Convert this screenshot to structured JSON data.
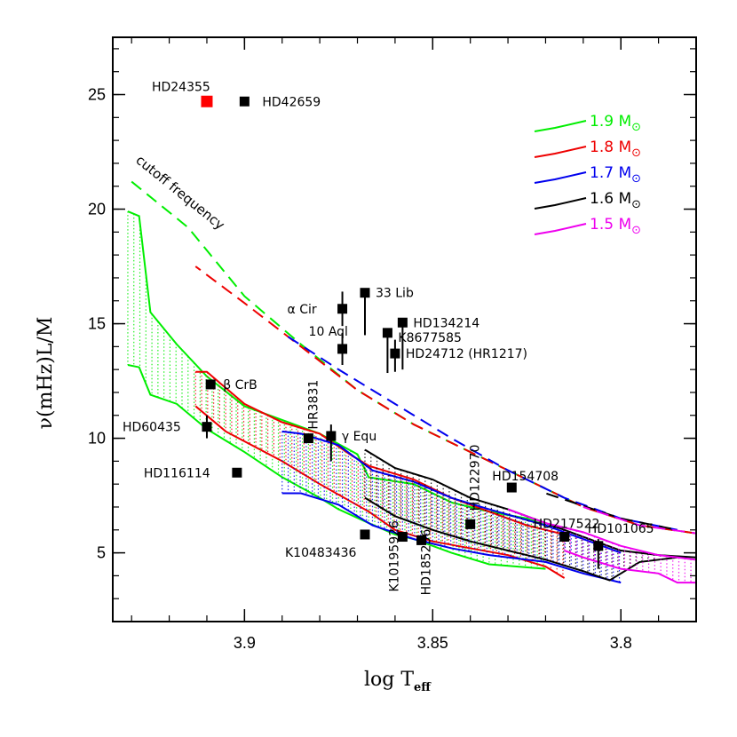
{
  "chart_data": {
    "type": "scatter",
    "xlabel_main": "log T",
    "xlabel_sub": "eff",
    "ylabel": "ν(mHz)L/M",
    "xlim": [
      3.935,
      3.78
    ],
    "ylim": [
      2,
      27.5
    ],
    "x_ticks": [
      {
        "value": 3.9,
        "label": "3.9"
      },
      {
        "value": 3.85,
        "label": "3.85"
      },
      {
        "value": 3.8,
        "label": "3.8"
      }
    ],
    "y_ticks": [
      {
        "value": 5,
        "label": "5"
      },
      {
        "value": 10,
        "label": "10"
      },
      {
        "value": 15,
        "label": "15"
      },
      {
        "value": 20,
        "label": "20"
      },
      {
        "value": 25,
        "label": "25"
      }
    ],
    "annotation": "cutoff frequency",
    "legend": [
      {
        "label": "1.9 M",
        "sub": "⊙",
        "color": "#00ee00"
      },
      {
        "label": "1.8 M",
        "sub": "⊙",
        "color": "#ee0000"
      },
      {
        "label": "1.7 M",
        "sub": "⊙",
        "color": "#0000ee"
      },
      {
        "label": "1.6 M",
        "sub": "⊙",
        "color": "#000000"
      },
      {
        "label": "1.5 M",
        "sub": "⊙",
        "color": "#ee00ee"
      }
    ],
    "stars": [
      {
        "name": "HD24355",
        "x": 3.91,
        "y": 24.7,
        "color": "#ff0000",
        "big": true,
        "label_dx": -62,
        "label_dy": -12,
        "rot": 0
      },
      {
        "name": "HD42659",
        "x": 3.9,
        "y": 24.7,
        "color": "#000000",
        "label_dx": 20,
        "label_dy": 5,
        "rot": 0
      },
      {
        "name": "33 Lib",
        "x": 3.868,
        "y": 16.35,
        "color": "#000000",
        "err": [
          14.5,
          16.35
        ],
        "label_dx": 12,
        "label_dy": 5,
        "rot": 0
      },
      {
        "name": "α Cir",
        "x": 3.874,
        "y": 15.65,
        "color": "#000000",
        "err": [
          14.9,
          16.4
        ],
        "label_dx": -62,
        "label_dy": 5,
        "rot": 0
      },
      {
        "name": "HD134214",
        "x": 3.858,
        "y": 15.05,
        "color": "#000000",
        "err": [
          13.0,
          15.05
        ],
        "label_dx": 12,
        "label_dy": 5,
        "rot": 0
      },
      {
        "name": "K8677585",
        "x": 3.862,
        "y": 14.6,
        "color": "#000000",
        "err": [
          12.85,
          14.6
        ],
        "label_dx": 12,
        "label_dy": 10,
        "rot": 0
      },
      {
        "name": "10 Aql",
        "x": 3.874,
        "y": 13.9,
        "color": "#000000",
        "err": [
          13.2,
          14.6
        ],
        "label_dx": -38,
        "label_dy": -15,
        "rot": 0
      },
      {
        "name": "HD24712 (HR1217)",
        "x": 3.86,
        "y": 13.7,
        "color": "#000000",
        "err": [
          12.9,
          14.3
        ],
        "label_dx": 12,
        "label_dy": 5,
        "rot": 0
      },
      {
        "name": "β CrB",
        "x": 3.909,
        "y": 12.35,
        "color": "#000000",
        "label_dx": 14,
        "label_dy": 5,
        "rot": 0
      },
      {
        "name": "HD60435",
        "x": 3.91,
        "y": 10.5,
        "color": "#000000",
        "err": [
          10.0,
          11.0
        ],
        "label_dx": -95,
        "label_dy": 5,
        "rot": 0
      },
      {
        "name": "HR3831",
        "x": 3.883,
        "y": 10.0,
        "color": "#000000",
        "label_dx": 10,
        "label_dy": -10,
        "rot": -90
      },
      {
        "name": "γ Equ",
        "x": 3.877,
        "y": 10.1,
        "color": "#000000",
        "err": [
          9.0,
          10.6
        ],
        "label_dx": 12,
        "label_dy": 5,
        "rot": 0
      },
      {
        "name": "HD116114",
        "x": 3.902,
        "y": 8.5,
        "color": "#000000",
        "label_dx": -105,
        "label_dy": 5,
        "rot": 0
      },
      {
        "name": "HD122970",
        "x": 3.84,
        "y": 6.25,
        "color": "#000000",
        "label_dx": 10,
        "label_dy": -15,
        "rot": -90
      },
      {
        "name": "HD154708",
        "x": 3.829,
        "y": 7.85,
        "color": "#000000",
        "label_dx": -22,
        "label_dy": -8,
        "rot": 0
      },
      {
        "name": "HD217522",
        "x": 3.815,
        "y": 5.7,
        "color": "#000000",
        "label_dx": -35,
        "label_dy": -10,
        "rot": 0
      },
      {
        "name": "HD101065",
        "x": 3.806,
        "y": 5.3,
        "color": "#000000",
        "err": [
          4.3,
          5.6
        ],
        "label_dx": -12,
        "label_dy": -15,
        "rot": 0
      },
      {
        "name": "K10483436",
        "x": 3.868,
        "y": 5.8,
        "color": "#000000",
        "label_dx": -90,
        "label_dy": 25,
        "rot": 0
      },
      {
        "name": "K10195926",
        "x": 3.858,
        "y": 5.7,
        "color": "#000000",
        "label_dx": -5,
        "label_dy": 62,
        "rot": -90
      },
      {
        "name": "HD185256",
        "x": 3.853,
        "y": 5.55,
        "color": "#000000",
        "label_dx": 10,
        "label_dy": 62,
        "rot": -90
      }
    ],
    "cutoff_lines": [
      {
        "color": "#00ee00",
        "points": [
          [
            3.93,
            21.2
          ],
          [
            3.915,
            19.2
          ],
          [
            3.9,
            16.2
          ],
          [
            3.885,
            14.1
          ],
          [
            3.87,
            12.1
          ],
          [
            3.855,
            10.6
          ],
          [
            3.84,
            9.4
          ],
          [
            3.825,
            8.2
          ],
          [
            3.81,
            7.0
          ],
          [
            3.795,
            6.2
          ],
          [
            3.78,
            5.85
          ]
        ]
      },
      {
        "color": "#ee0000",
        "points": [
          [
            3.913,
            17.5
          ],
          [
            3.9,
            15.9
          ],
          [
            3.885,
            14.0
          ],
          [
            3.87,
            12.1
          ],
          [
            3.855,
            10.6
          ],
          [
            3.84,
            9.4
          ],
          [
            3.825,
            8.2
          ],
          [
            3.81,
            7.0
          ],
          [
            3.795,
            6.2
          ],
          [
            3.78,
            5.85
          ]
        ]
      },
      {
        "color": "#0000ee",
        "points": [
          [
            3.89,
            14.6
          ],
          [
            3.875,
            13.0
          ],
          [
            3.86,
            11.5
          ],
          [
            3.845,
            10.0
          ],
          [
            3.83,
            8.6
          ],
          [
            3.815,
            7.4
          ],
          [
            3.8,
            6.5
          ],
          [
            3.785,
            6.0
          ]
        ]
      },
      {
        "color": "#000000",
        "points": [
          [
            3.82,
            7.6
          ],
          [
            3.8,
            6.5
          ],
          [
            3.785,
            6.0
          ]
        ]
      },
      {
        "color": "#ee00ee",
        "points": [
          [
            3.81,
            7.0
          ],
          [
            3.795,
            6.2
          ],
          [
            3.78,
            5.85
          ]
        ]
      }
    ],
    "tracks": [
      {
        "color": "#00ee00",
        "upper": [
          [
            3.931,
            19.9
          ],
          [
            3.928,
            19.7
          ],
          [
            3.925,
            15.5
          ],
          [
            3.918,
            14.1
          ],
          [
            3.91,
            12.7
          ],
          [
            3.9,
            11.4
          ],
          [
            3.89,
            10.8
          ],
          [
            3.88,
            10.2
          ],
          [
            3.87,
            9.3
          ],
          [
            3.867,
            8.3
          ],
          [
            3.855,
            8.0
          ],
          [
            3.845,
            7.2
          ],
          [
            3.835,
            6.8
          ],
          [
            3.825,
            6.5
          ],
          [
            3.82,
            6.2
          ]
        ],
        "lower": [
          [
            3.931,
            13.2
          ],
          [
            3.928,
            13.1
          ],
          [
            3.925,
            11.9
          ],
          [
            3.918,
            11.5
          ],
          [
            3.91,
            10.4
          ],
          [
            3.9,
            9.4
          ],
          [
            3.89,
            8.3
          ],
          [
            3.88,
            7.4
          ],
          [
            3.875,
            6.9
          ],
          [
            3.867,
            6.3
          ],
          [
            3.86,
            5.8
          ],
          [
            3.855,
            5.6
          ],
          [
            3.845,
            5.0
          ],
          [
            3.835,
            4.5
          ],
          [
            3.82,
            4.3
          ]
        ]
      },
      {
        "color": "#ee0000",
        "upper": [
          [
            3.913,
            12.9
          ],
          [
            3.91,
            12.9
          ],
          [
            3.9,
            11.5
          ],
          [
            3.89,
            10.7
          ],
          [
            3.88,
            10.2
          ],
          [
            3.872,
            9.3
          ],
          [
            3.867,
            8.8
          ],
          [
            3.855,
            8.2
          ],
          [
            3.845,
            7.4
          ],
          [
            3.835,
            6.8
          ],
          [
            3.825,
            6.2
          ],
          [
            3.815,
            5.8
          ]
        ],
        "lower": [
          [
            3.913,
            11.4
          ],
          [
            3.905,
            10.3
          ],
          [
            3.89,
            9.0
          ],
          [
            3.88,
            8.0
          ],
          [
            3.867,
            6.8
          ],
          [
            3.86,
            6.0
          ],
          [
            3.85,
            5.5
          ],
          [
            3.84,
            5.2
          ],
          [
            3.83,
            4.9
          ],
          [
            3.82,
            4.4
          ],
          [
            3.815,
            3.9
          ]
        ]
      },
      {
        "color": "#0000ee",
        "upper": [
          [
            3.89,
            10.3
          ],
          [
            3.885,
            10.2
          ],
          [
            3.875,
            9.7
          ],
          [
            3.866,
            8.6
          ],
          [
            3.855,
            8.1
          ],
          [
            3.845,
            7.4
          ],
          [
            3.835,
            6.9
          ],
          [
            3.82,
            6.2
          ],
          [
            3.81,
            5.6
          ],
          [
            3.8,
            5.0
          ]
        ],
        "lower": [
          [
            3.89,
            7.6
          ],
          [
            3.885,
            7.6
          ],
          [
            3.875,
            7.1
          ],
          [
            3.866,
            6.2
          ],
          [
            3.855,
            5.6
          ],
          [
            3.845,
            5.2
          ],
          [
            3.835,
            4.9
          ],
          [
            3.82,
            4.6
          ],
          [
            3.81,
            4.1
          ],
          [
            3.8,
            3.7
          ]
        ]
      },
      {
        "color": "#000000",
        "upper": [
          [
            3.868,
            9.5
          ],
          [
            3.86,
            8.7
          ],
          [
            3.85,
            8.2
          ],
          [
            3.84,
            7.4
          ],
          [
            3.83,
            6.9
          ],
          [
            3.82,
            6.3
          ],
          [
            3.81,
            5.7
          ],
          [
            3.8,
            5.1
          ],
          [
            3.79,
            4.9
          ],
          [
            3.78,
            4.8
          ]
        ],
        "lower": [
          [
            3.868,
            7.4
          ],
          [
            3.86,
            6.6
          ],
          [
            3.85,
            6.0
          ],
          [
            3.84,
            5.5
          ],
          [
            3.83,
            5.1
          ],
          [
            3.82,
            4.7
          ],
          [
            3.81,
            4.2
          ],
          [
            3.803,
            3.8
          ],
          [
            3.795,
            4.6
          ],
          [
            3.785,
            4.8
          ]
        ]
      },
      {
        "color": "#ee00ee",
        "upper": [
          [
            3.83,
            6.9
          ],
          [
            3.82,
            6.3
          ],
          [
            3.81,
            5.9
          ],
          [
            3.8,
            5.3
          ],
          [
            3.79,
            4.9
          ],
          [
            3.78,
            4.7
          ]
        ],
        "lower": [
          [
            3.815,
            5.1
          ],
          [
            3.81,
            4.8
          ],
          [
            3.8,
            4.3
          ],
          [
            3.79,
            4.1
          ],
          [
            3.785,
            3.7
          ],
          [
            3.78,
            3.7
          ]
        ]
      }
    ]
  }
}
